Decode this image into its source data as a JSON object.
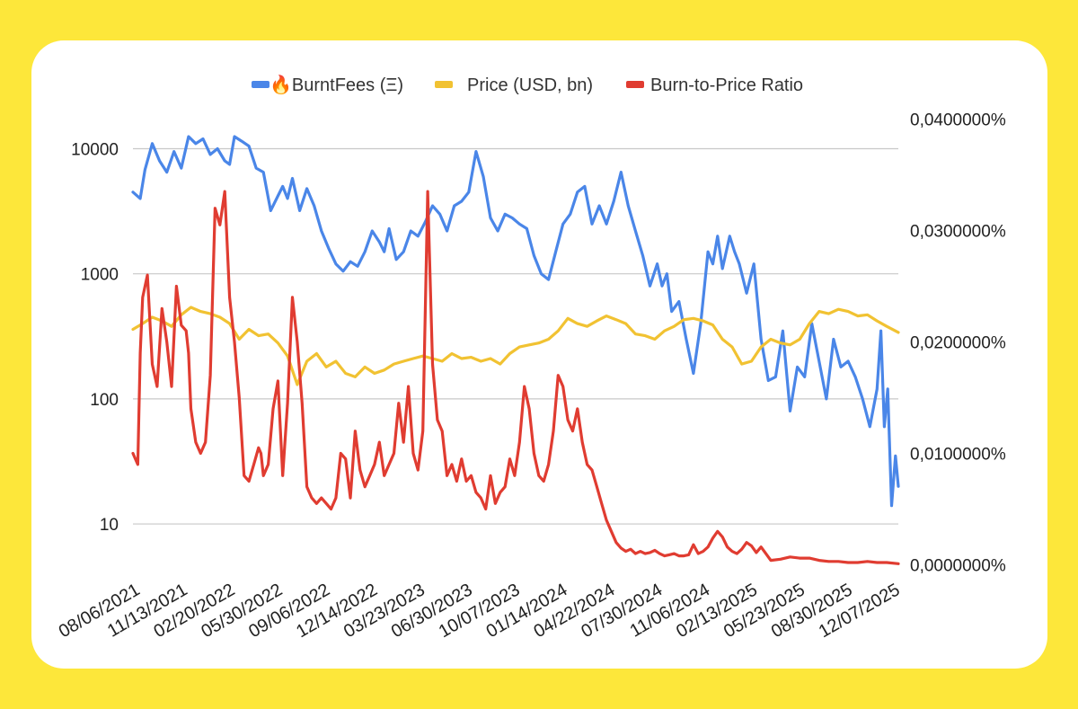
{
  "chart_data": {
    "type": "line",
    "title": "",
    "legend_position": "top",
    "colors": {
      "burnt": "#4a86e8",
      "price": "#f1c232",
      "ratio": "#e03c31",
      "grid": "#c8c8c8",
      "background": "#ffffff",
      "frame": "#fde73a"
    },
    "legend": [
      {
        "icon": "🔥",
        "label": "BurntFees (Ξ)",
        "color": "#4a86e8"
      },
      {
        "icon": "",
        "label": "Price (USD, bn)",
        "color": "#f1c232"
      },
      {
        "icon": "",
        "label": "Burn-to-Price Ratio",
        "color": "#e03c31"
      }
    ],
    "left_axis": {
      "scale": "log",
      "ylim": [
        4.6,
        18000
      ],
      "ticks": [
        10,
        100,
        1000,
        10000
      ],
      "tick_labels": [
        "10",
        "100",
        "1000",
        "10000"
      ]
    },
    "right_axis": {
      "scale": "linear",
      "ylim": [
        -1.2e-06,
        0.000402
      ],
      "ticks": [
        0,
        0.0001,
        0.0002,
        0.0003,
        0.0004
      ],
      "tick_labels": [
        "0,0000000%",
        "0,0100000%",
        "0,0200000%",
        "0,0300000%",
        "0,0400000%"
      ]
    },
    "x_labels": [
      "08/06/2021",
      "11/13/2021",
      "02/20/2022",
      "05/30/2022",
      "09/06/2022",
      "12/14/2022",
      "03/23/2023",
      "06/30/2023",
      "10/07/2023",
      "01/14/2024",
      "04/22/2024",
      "07/30/2024",
      "11/06/2024",
      "02/13/2025",
      "05/23/2025",
      "08/30/2025",
      "12/07/2025"
    ],
    "x_day_range": [
      0,
      1584
    ],
    "series": [
      {
        "name": "BurntFees (Ξ)",
        "axis": "left",
        "x_days": [
          0,
          15,
          25,
          40,
          55,
          70,
          85,
          100,
          115,
          130,
          145,
          160,
          175,
          190,
          200,
          210,
          225,
          240,
          255,
          270,
          285,
          300,
          310,
          320,
          330,
          345,
          360,
          375,
          390,
          405,
          420,
          435,
          450,
          465,
          480,
          495,
          510,
          520,
          530,
          545,
          560,
          575,
          590,
          605,
          620,
          635,
          650,
          665,
          680,
          695,
          710,
          725,
          740,
          755,
          770,
          785,
          800,
          815,
          830,
          845,
          860,
          875,
          890,
          905,
          920,
          935,
          950,
          965,
          980,
          995,
          1010,
          1025,
          1040,
          1055,
          1070,
          1085,
          1095,
          1105,
          1115,
          1130,
          1145,
          1160,
          1175,
          1190,
          1200,
          1210,
          1220,
          1235,
          1245,
          1255,
          1270,
          1285,
          1300,
          1315,
          1330,
          1345,
          1360,
          1375,
          1390,
          1405,
          1420,
          1435,
          1450,
          1465,
          1480,
          1495,
          1510,
          1525,
          1540,
          1548,
          1555,
          1562,
          1570,
          1578,
          1584
        ],
        "values": [
          4500,
          4000,
          6800,
          11000,
          8000,
          6500,
          9500,
          7000,
          12500,
          11000,
          12000,
          9000,
          10000,
          8000,
          7500,
          12500,
          11500,
          10500,
          7000,
          6500,
          3200,
          4200,
          5000,
          4000,
          5800,
          3200,
          4800,
          3500,
          2200,
          1600,
          1200,
          1050,
          1250,
          1150,
          1500,
          2200,
          1800,
          1500,
          2300,
          1300,
          1500,
          2200,
          2000,
          2600,
          3500,
          3000,
          2200,
          3500,
          3800,
          4500,
          9500,
          6000,
          2800,
          2200,
          3000,
          2800,
          2500,
          2300,
          1400,
          1000,
          900,
          1500,
          2500,
          3000,
          4500,
          5000,
          2500,
          3500,
          2500,
          3800,
          6500,
          3500,
          2200,
          1400,
          800,
          1200,
          800,
          1000,
          500,
          600,
          300,
          160,
          400,
          1500,
          1200,
          2000,
          1100,
          2000,
          1500,
          1200,
          700,
          1200,
          300,
          140,
          150,
          350,
          80,
          180,
          150,
          400,
          200,
          100,
          300,
          180,
          200,
          150,
          100,
          60,
          120,
          350,
          60,
          120,
          14,
          35,
          20
        ],
        "values_count": 115
      },
      {
        "name": "Price (USD, bn)",
        "axis": "left",
        "x_days": [
          0,
          20,
          40,
          60,
          80,
          100,
          120,
          140,
          160,
          180,
          200,
          220,
          240,
          260,
          280,
          300,
          320,
          340,
          360,
          380,
          400,
          420,
          440,
          460,
          480,
          500,
          520,
          540,
          560,
          580,
          600,
          620,
          640,
          660,
          680,
          700,
          720,
          740,
          760,
          780,
          800,
          820,
          840,
          860,
          880,
          900,
          920,
          940,
          960,
          980,
          1000,
          1020,
          1040,
          1060,
          1080,
          1100,
          1120,
          1140,
          1160,
          1180,
          1200,
          1220,
          1240,
          1260,
          1280,
          1300,
          1320,
          1340,
          1360,
          1380,
          1400,
          1420,
          1440,
          1460,
          1480,
          1500,
          1520,
          1540,
          1560,
          1584
        ],
        "values": [
          360,
          400,
          450,
          420,
          380,
          470,
          540,
          500,
          480,
          450,
          400,
          300,
          360,
          320,
          330,
          280,
          220,
          130,
          200,
          230,
          180,
          200,
          160,
          150,
          180,
          160,
          170,
          190,
          200,
          210,
          220,
          210,
          200,
          230,
          210,
          215,
          200,
          210,
          190,
          230,
          260,
          270,
          280,
          300,
          350,
          440,
          400,
          380,
          420,
          460,
          430,
          400,
          330,
          320,
          300,
          350,
          380,
          430,
          440,
          420,
          390,
          300,
          260,
          190,
          200,
          260,
          300,
          280,
          270,
          300,
          400,
          500,
          480,
          520,
          500,
          460,
          470,
          420,
          380,
          340
        ],
        "values_count": 80
      },
      {
        "name": "Burn-to-Price Ratio",
        "axis": "right",
        "x_days": [
          0,
          10,
          15,
          20,
          30,
          40,
          50,
          60,
          70,
          80,
          90,
          100,
          110,
          115,
          120,
          130,
          140,
          150,
          160,
          170,
          180,
          190,
          200,
          210,
          220,
          230,
          240,
          250,
          260,
          265,
          270,
          280,
          290,
          300,
          310,
          320,
          330,
          340,
          350,
          360,
          370,
          380,
          390,
          400,
          410,
          420,
          430,
          440,
          450,
          460,
          470,
          480,
          490,
          500,
          510,
          520,
          530,
          540,
          550,
          560,
          570,
          580,
          590,
          600,
          610,
          620,
          630,
          640,
          650,
          660,
          670,
          680,
          690,
          700,
          710,
          720,
          730,
          740,
          750,
          760,
          770,
          780,
          790,
          800,
          810,
          820,
          830,
          840,
          850,
          860,
          870,
          880,
          890,
          900,
          910,
          920,
          930,
          940,
          950,
          960,
          970,
          980,
          990,
          1000,
          1010,
          1020,
          1030,
          1040,
          1050,
          1060,
          1070,
          1080,
          1090,
          1100,
          1110,
          1120,
          1130,
          1140,
          1150,
          1160,
          1170,
          1180,
          1190,
          1200,
          1210,
          1220,
          1230,
          1240,
          1250,
          1260,
          1270,
          1280,
          1290,
          1300,
          1320,
          1340,
          1360,
          1380,
          1400,
          1420,
          1440,
          1460,
          1480,
          1500,
          1520,
          1540,
          1560,
          1584
        ],
        "values": [
          0.0001,
          9e-05,
          0.00019,
          0.00024,
          0.00026,
          0.00018,
          0.00016,
          0.00023,
          0.0002,
          0.00016,
          0.00025,
          0.000215,
          0.00021,
          0.00019,
          0.00014,
          0.00011,
          0.0001,
          0.00011,
          0.00017,
          0.00032,
          0.000305,
          0.000335,
          0.00024,
          0.0002,
          0.00015,
          8e-05,
          7.5e-05,
          9e-05,
          0.000105,
          0.0001,
          8e-05,
          9e-05,
          0.00014,
          0.000165,
          8e-05,
          0.000145,
          0.00024,
          0.0002,
          0.000145,
          7e-05,
          6e-05,
          5.5e-05,
          6e-05,
          5.5e-05,
          5e-05,
          6e-05,
          0.0001,
          9.5e-05,
          6e-05,
          0.00012,
          8.5e-05,
          7e-05,
          8e-05,
          9e-05,
          0.00011,
          8e-05,
          9e-05,
          0.0001,
          0.000145,
          0.00011,
          0.00016,
          0.0001,
          8.5e-05,
          0.00012,
          0.000335,
          0.00018,
          0.00013,
          0.00012,
          8e-05,
          9e-05,
          7.5e-05,
          9.5e-05,
          7.5e-05,
          8e-05,
          6.5e-05,
          6e-05,
          5e-05,
          8e-05,
          5.5e-05,
          6.5e-05,
          7e-05,
          9.5e-05,
          8e-05,
          0.00011,
          0.00016,
          0.00014,
          0.0001,
          8e-05,
          7.5e-05,
          9e-05,
          0.00012,
          0.00017,
          0.00016,
          0.00013,
          0.00012,
          0.00014,
          0.00011,
          9e-05,
          8.5e-05,
          7e-05,
          5.5e-05,
          4e-05,
          3e-05,
          2e-05,
          1.5e-05,
          1.2e-05,
          1.4e-05,
          1e-05,
          1.2e-05,
          1e-05,
          1.1e-05,
          1.3e-05,
          1e-05,
          8e-06,
          9e-06,
          1e-05,
          8e-06,
          8e-06,
          9e-06,
          1.8e-05,
          1e-05,
          1.2e-05,
          1.6e-05,
          2.4e-05,
          3e-05,
          2.5e-05,
          1.6e-05,
          1.2e-05,
          1e-05,
          1.4e-05,
          2e-05,
          1.7e-05,
          1.1e-05,
          1.6e-05,
          4e-06,
          5e-06,
          7e-06,
          6e-06,
          6e-06,
          4e-06,
          3e-06,
          3e-06,
          2e-06,
          2e-06,
          3e-06,
          2e-06,
          2e-06,
          1e-06
        ],
        "values_count": 150
      }
    ]
  }
}
